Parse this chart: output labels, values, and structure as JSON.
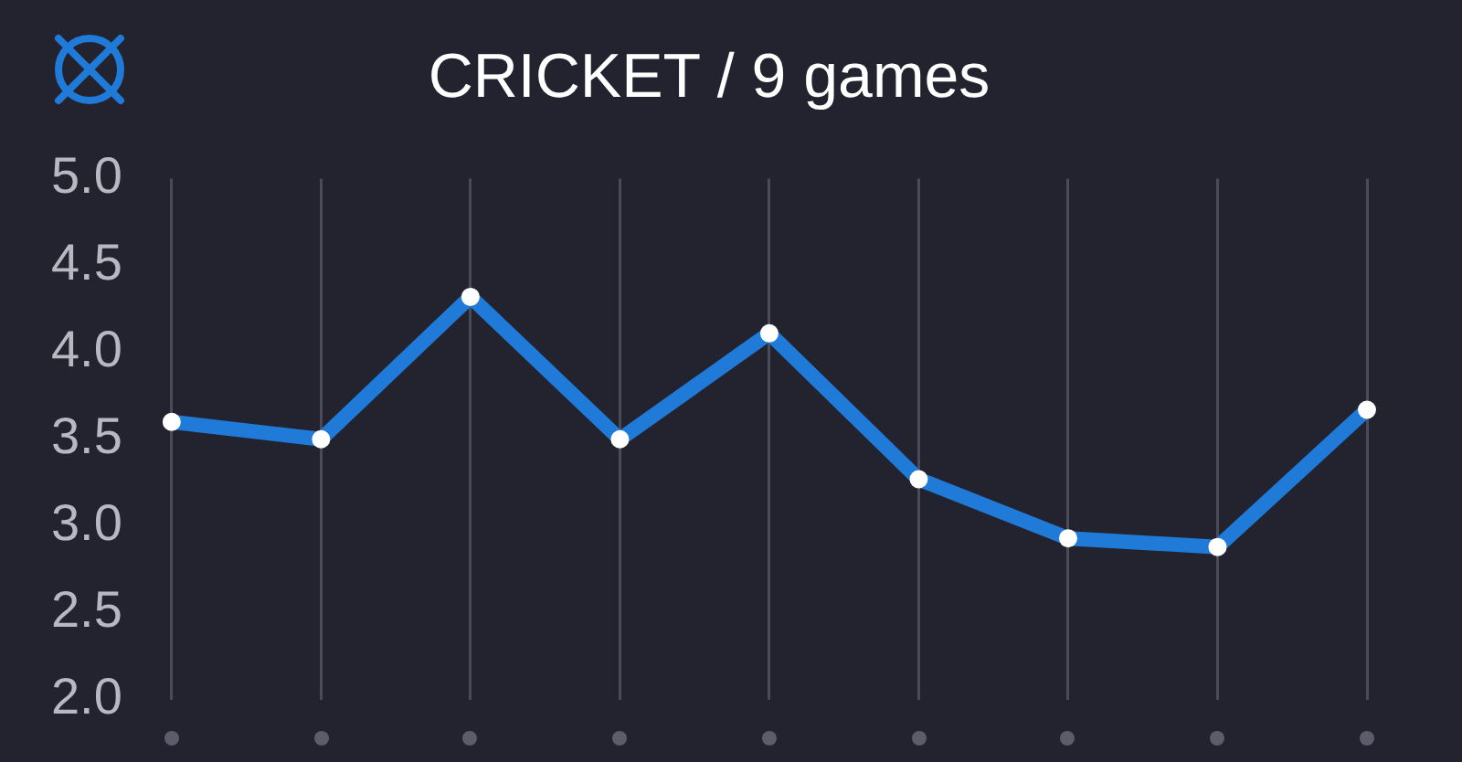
{
  "chart_data": {
    "type": "line",
    "title": "CRICKET / 9 games",
    "categories": [
      null,
      null,
      null,
      null,
      null,
      null,
      null,
      null,
      null
    ],
    "series": [
      {
        "color": "#1f7ad8",
        "values": [
          3.6,
          3.5,
          4.32,
          3.5,
          4.11,
          3.27,
          2.93,
          2.88,
          3.67
        ]
      }
    ],
    "ylim": [
      2,
      5
    ],
    "yticks": [
      {
        "value": 2,
        "label": "2.0"
      },
      {
        "value": 2.5,
        "label": "2.5"
      },
      {
        "value": 3,
        "label": "3.0"
      },
      {
        "value": 3.5,
        "label": "3.5"
      },
      {
        "value": 4,
        "label": "4.0"
      },
      {
        "value": 4.5,
        "label": "4.5"
      },
      {
        "value": 5,
        "label": "5.0"
      }
    ],
    "grid": "x",
    "marker": "circle",
    "tick_labels": "y"
  }
}
